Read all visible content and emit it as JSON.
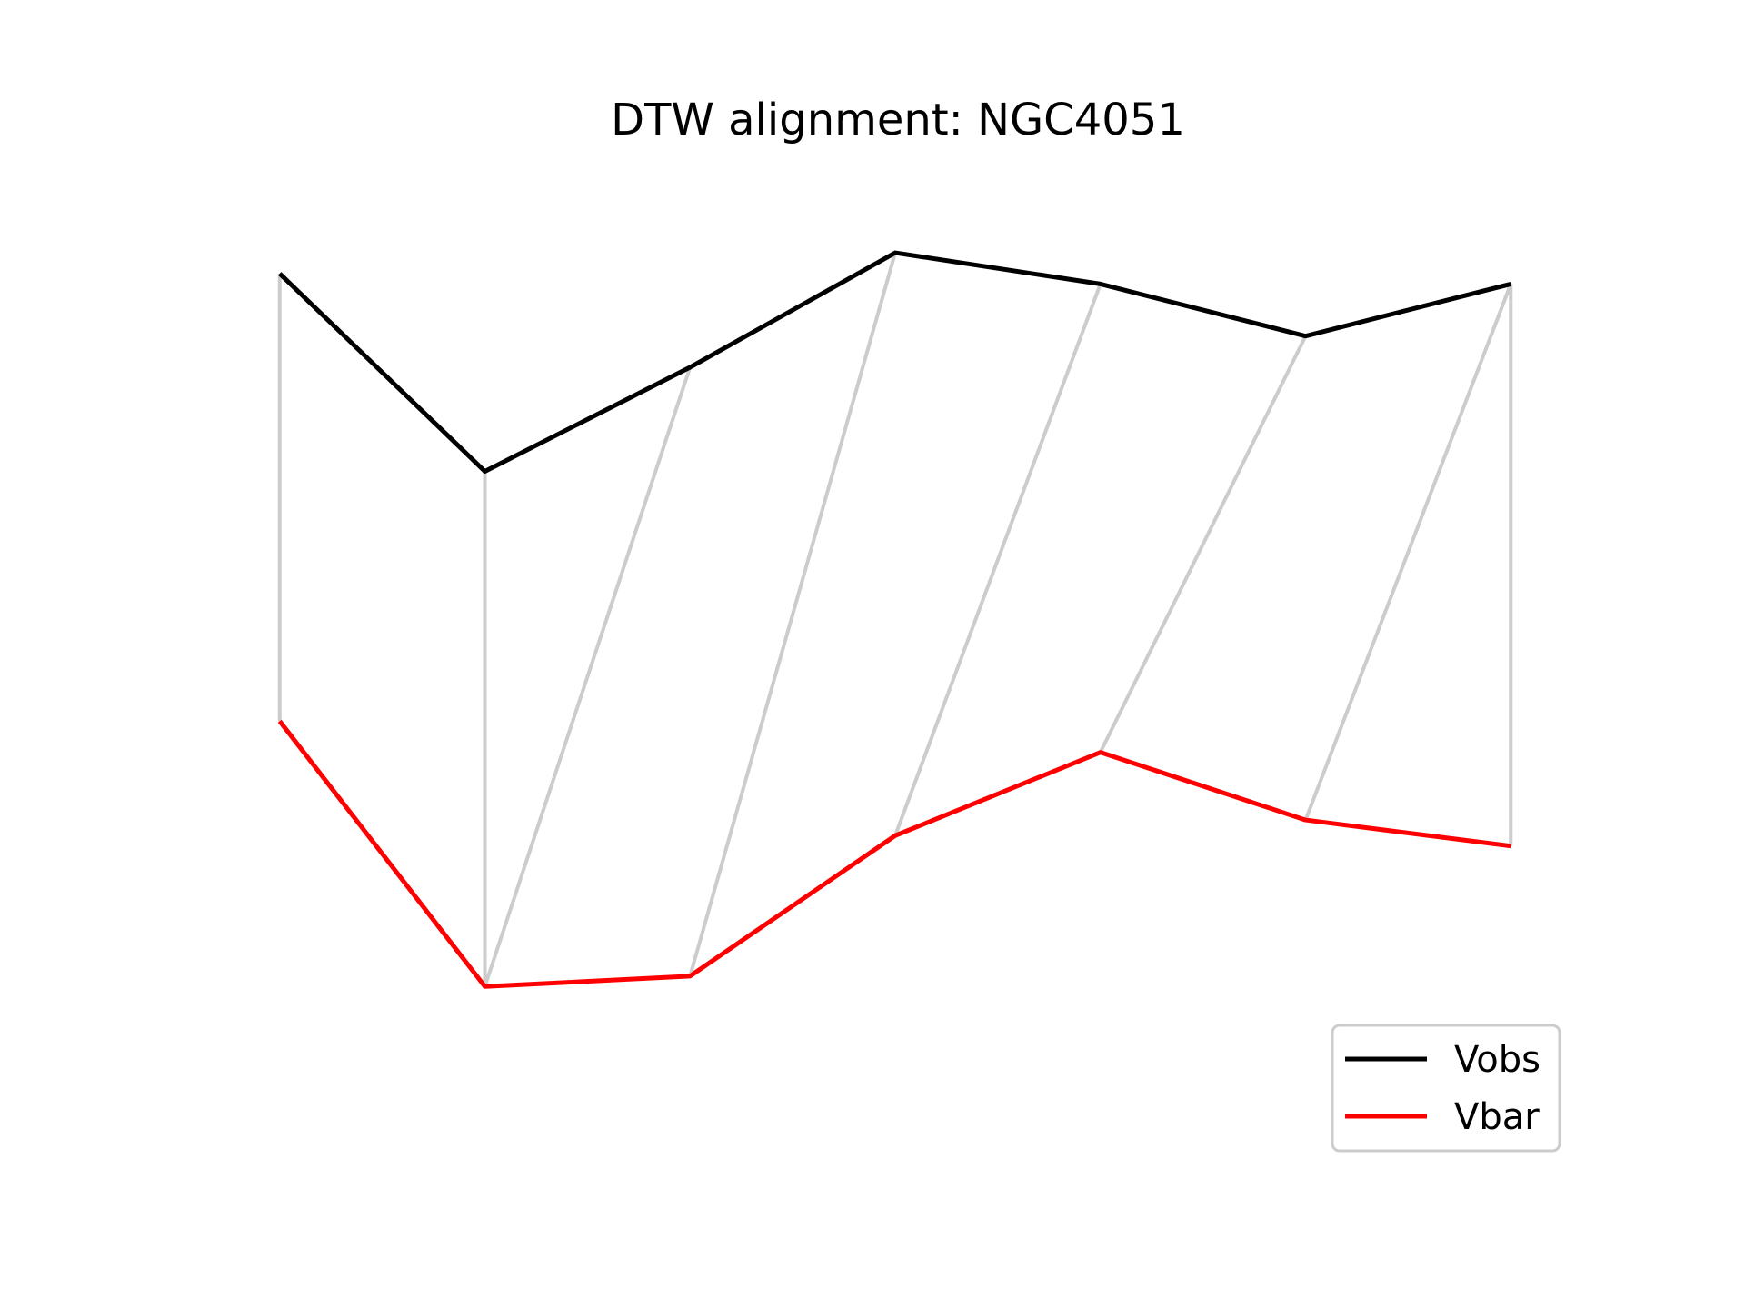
{
  "chart_data": {
    "type": "line",
    "title": "DTW alignment: NGC4051",
    "xlabel": "",
    "ylabel": "",
    "axes_visible": false,
    "grid": false,
    "legend_position": "lower-right",
    "x": [
      0,
      1,
      2,
      3,
      4,
      5,
      6
    ],
    "xlim": [
      -0.3,
      6.3
    ],
    "ylim": [
      -1.0,
      1.0
    ],
    "series": [
      {
        "name": "Vobs",
        "color": "#000000",
        "values": [
          0.78,
          0.4,
          0.6,
          0.82,
          0.76,
          0.66,
          0.76
        ]
      },
      {
        "name": "Vbar",
        "color": "#ff0000",
        "values": [
          -0.08,
          -0.59,
          -0.57,
          -0.3,
          -0.14,
          -0.27,
          -0.32
        ]
      }
    ],
    "alignment": {
      "color": "#cccccc",
      "pairs": [
        [
          0,
          0
        ],
        [
          1,
          1
        ],
        [
          2,
          1
        ],
        [
          3,
          2
        ],
        [
          4,
          3
        ],
        [
          5,
          4
        ],
        [
          6,
          5
        ],
        [
          6,
          6
        ]
      ]
    }
  }
}
